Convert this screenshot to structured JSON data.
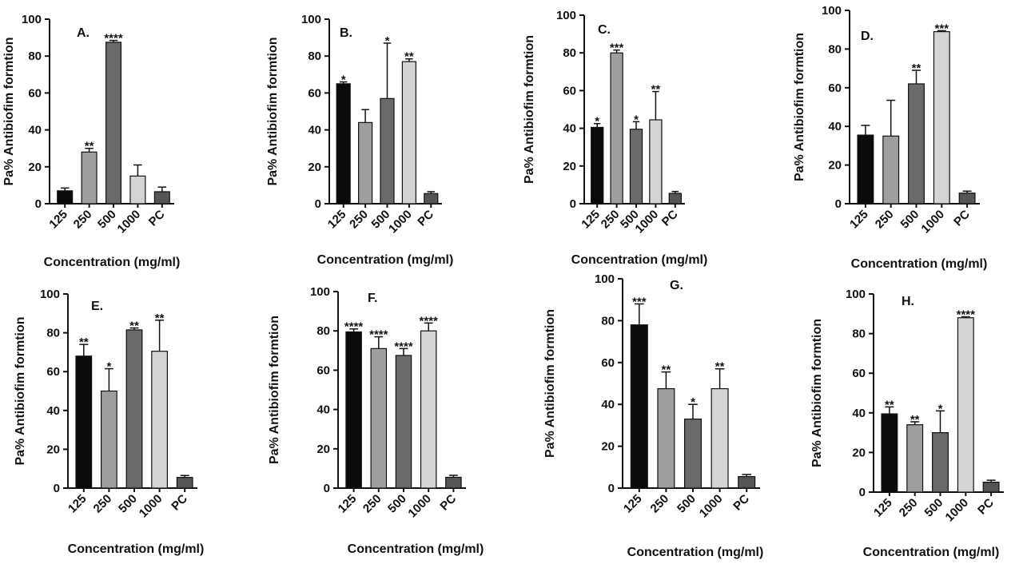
{
  "chart_data": [
    {
      "type": "bar",
      "panel_label": "A.",
      "categories": [
        "125",
        "250",
        "500",
        "1000",
        "PC"
      ],
      "values": [
        7,
        28,
        87.5,
        15,
        6.5
      ],
      "errors": [
        1.5,
        2,
        1,
        6,
        2.5
      ],
      "significance": [
        "",
        "**",
        "****",
        "",
        ""
      ],
      "xlabel": "Concentration (mg/ml)",
      "ylabel": "Pa% Antibiofim formtion",
      "ylim": [
        0,
        100
      ],
      "yticks": [
        0,
        20,
        40,
        60,
        80,
        100
      ]
    },
    {
      "type": "bar",
      "panel_label": "B.",
      "categories": [
        "125",
        "250",
        "500",
        "1000",
        "PC"
      ],
      "values": [
        65,
        44,
        57,
        77,
        5.5
      ],
      "errors": [
        1,
        7,
        30,
        1.5,
        1
      ],
      "significance": [
        "*",
        "",
        "*",
        "**",
        ""
      ],
      "xlabel": "Concentration (mg/ml)",
      "ylabel": "Pa% Antibiofim formtion",
      "ylim": [
        0,
        100
      ],
      "yticks": [
        0,
        20,
        40,
        60,
        80,
        100
      ]
    },
    {
      "type": "bar",
      "panel_label": "C.",
      "categories": [
        "125",
        "250",
        "500",
        "1000",
        "PC"
      ],
      "values": [
        40.5,
        80,
        39.5,
        44.5,
        5.5
      ],
      "errors": [
        2,
        1.5,
        4,
        15,
        1
      ],
      "significance": [
        "*",
        "***",
        "*",
        "**",
        ""
      ],
      "xlabel": "Concentration (mg/ml)",
      "ylabel": "Pa% Antibiofim formtion",
      "ylim": [
        0,
        100
      ],
      "yticks": [
        0,
        20,
        40,
        60,
        80,
        100
      ]
    },
    {
      "type": "bar",
      "panel_label": "D.",
      "categories": [
        "125",
        "250",
        "500",
        "1000",
        "PC"
      ],
      "values": [
        35.5,
        35,
        62,
        89,
        5.5
      ],
      "errors": [
        5,
        18.5,
        7,
        0.5,
        1
      ],
      "significance": [
        "",
        "",
        "**",
        "***",
        ""
      ],
      "xlabel": "Concentration (mg/ml)",
      "ylabel": "Pa% Antibiofim formtion",
      "ylim": [
        0,
        100
      ],
      "yticks": [
        0,
        20,
        40,
        60,
        80,
        100
      ]
    },
    {
      "type": "bar",
      "panel_label": "E.",
      "categories": [
        "125",
        "250",
        "500",
        "1000",
        "PC"
      ],
      "values": [
        68,
        50,
        81.5,
        70.5,
        5.5
      ],
      "errors": [
        6,
        11.5,
        1,
        16,
        1
      ],
      "significance": [
        "**",
        "*",
        "**",
        "**",
        ""
      ],
      "xlabel": "Concentration (mg/ml)",
      "ylabel": "Pa% Antibiofim formtion",
      "ylim": [
        0,
        100
      ],
      "yticks": [
        0,
        20,
        40,
        60,
        80,
        100
      ]
    },
    {
      "type": "bar",
      "panel_label": "F.",
      "categories": [
        "125",
        "250",
        "500",
        "1000",
        "PC"
      ],
      "values": [
        79.5,
        71,
        67.5,
        80,
        5.5
      ],
      "errors": [
        1.5,
        6,
        3.5,
        4,
        1
      ],
      "significance": [
        "****",
        "****",
        "****",
        "****",
        ""
      ],
      "xlabel": "Concentration (mg/ml)",
      "ylabel": "Pa% Antibiofim formtion",
      "ylim": [
        0,
        100
      ],
      "yticks": [
        0,
        20,
        40,
        60,
        80,
        100
      ]
    },
    {
      "type": "bar",
      "panel_label": "G.",
      "categories": [
        "125",
        "250",
        "500",
        "1000",
        "PC"
      ],
      "values": [
        78,
        47.5,
        33,
        47.5,
        5.5
      ],
      "errors": [
        10,
        8,
        7,
        9.5,
        1
      ],
      "significance": [
        "***",
        "**",
        "*",
        "**",
        ""
      ],
      "xlabel": "Concentration (mg/ml)",
      "ylabel": "Pa% Antibiofim formtion",
      "ylim": [
        0,
        100
      ],
      "yticks": [
        0,
        20,
        40,
        60,
        80,
        100
      ]
    },
    {
      "type": "bar",
      "panel_label": "H.",
      "categories": [
        "125",
        "250",
        "500",
        "1000",
        "PC"
      ],
      "values": [
        39.5,
        34,
        30,
        88,
        5
      ],
      "errors": [
        3.5,
        1.5,
        11,
        0.5,
        1
      ],
      "significance": [
        "**",
        "**",
        "*",
        "****",
        ""
      ],
      "xlabel": "Concentration (mg/ml)",
      "ylabel": "Pa% Antibiofim formtion",
      "ylim": [
        0,
        100
      ],
      "yticks": [
        0,
        20,
        40,
        60,
        80,
        100
      ]
    }
  ],
  "bar_colors": [
    "#0b0b0b",
    "#9e9e9e",
    "#6a6a6a",
    "#d4d4d4",
    "#555555"
  ]
}
